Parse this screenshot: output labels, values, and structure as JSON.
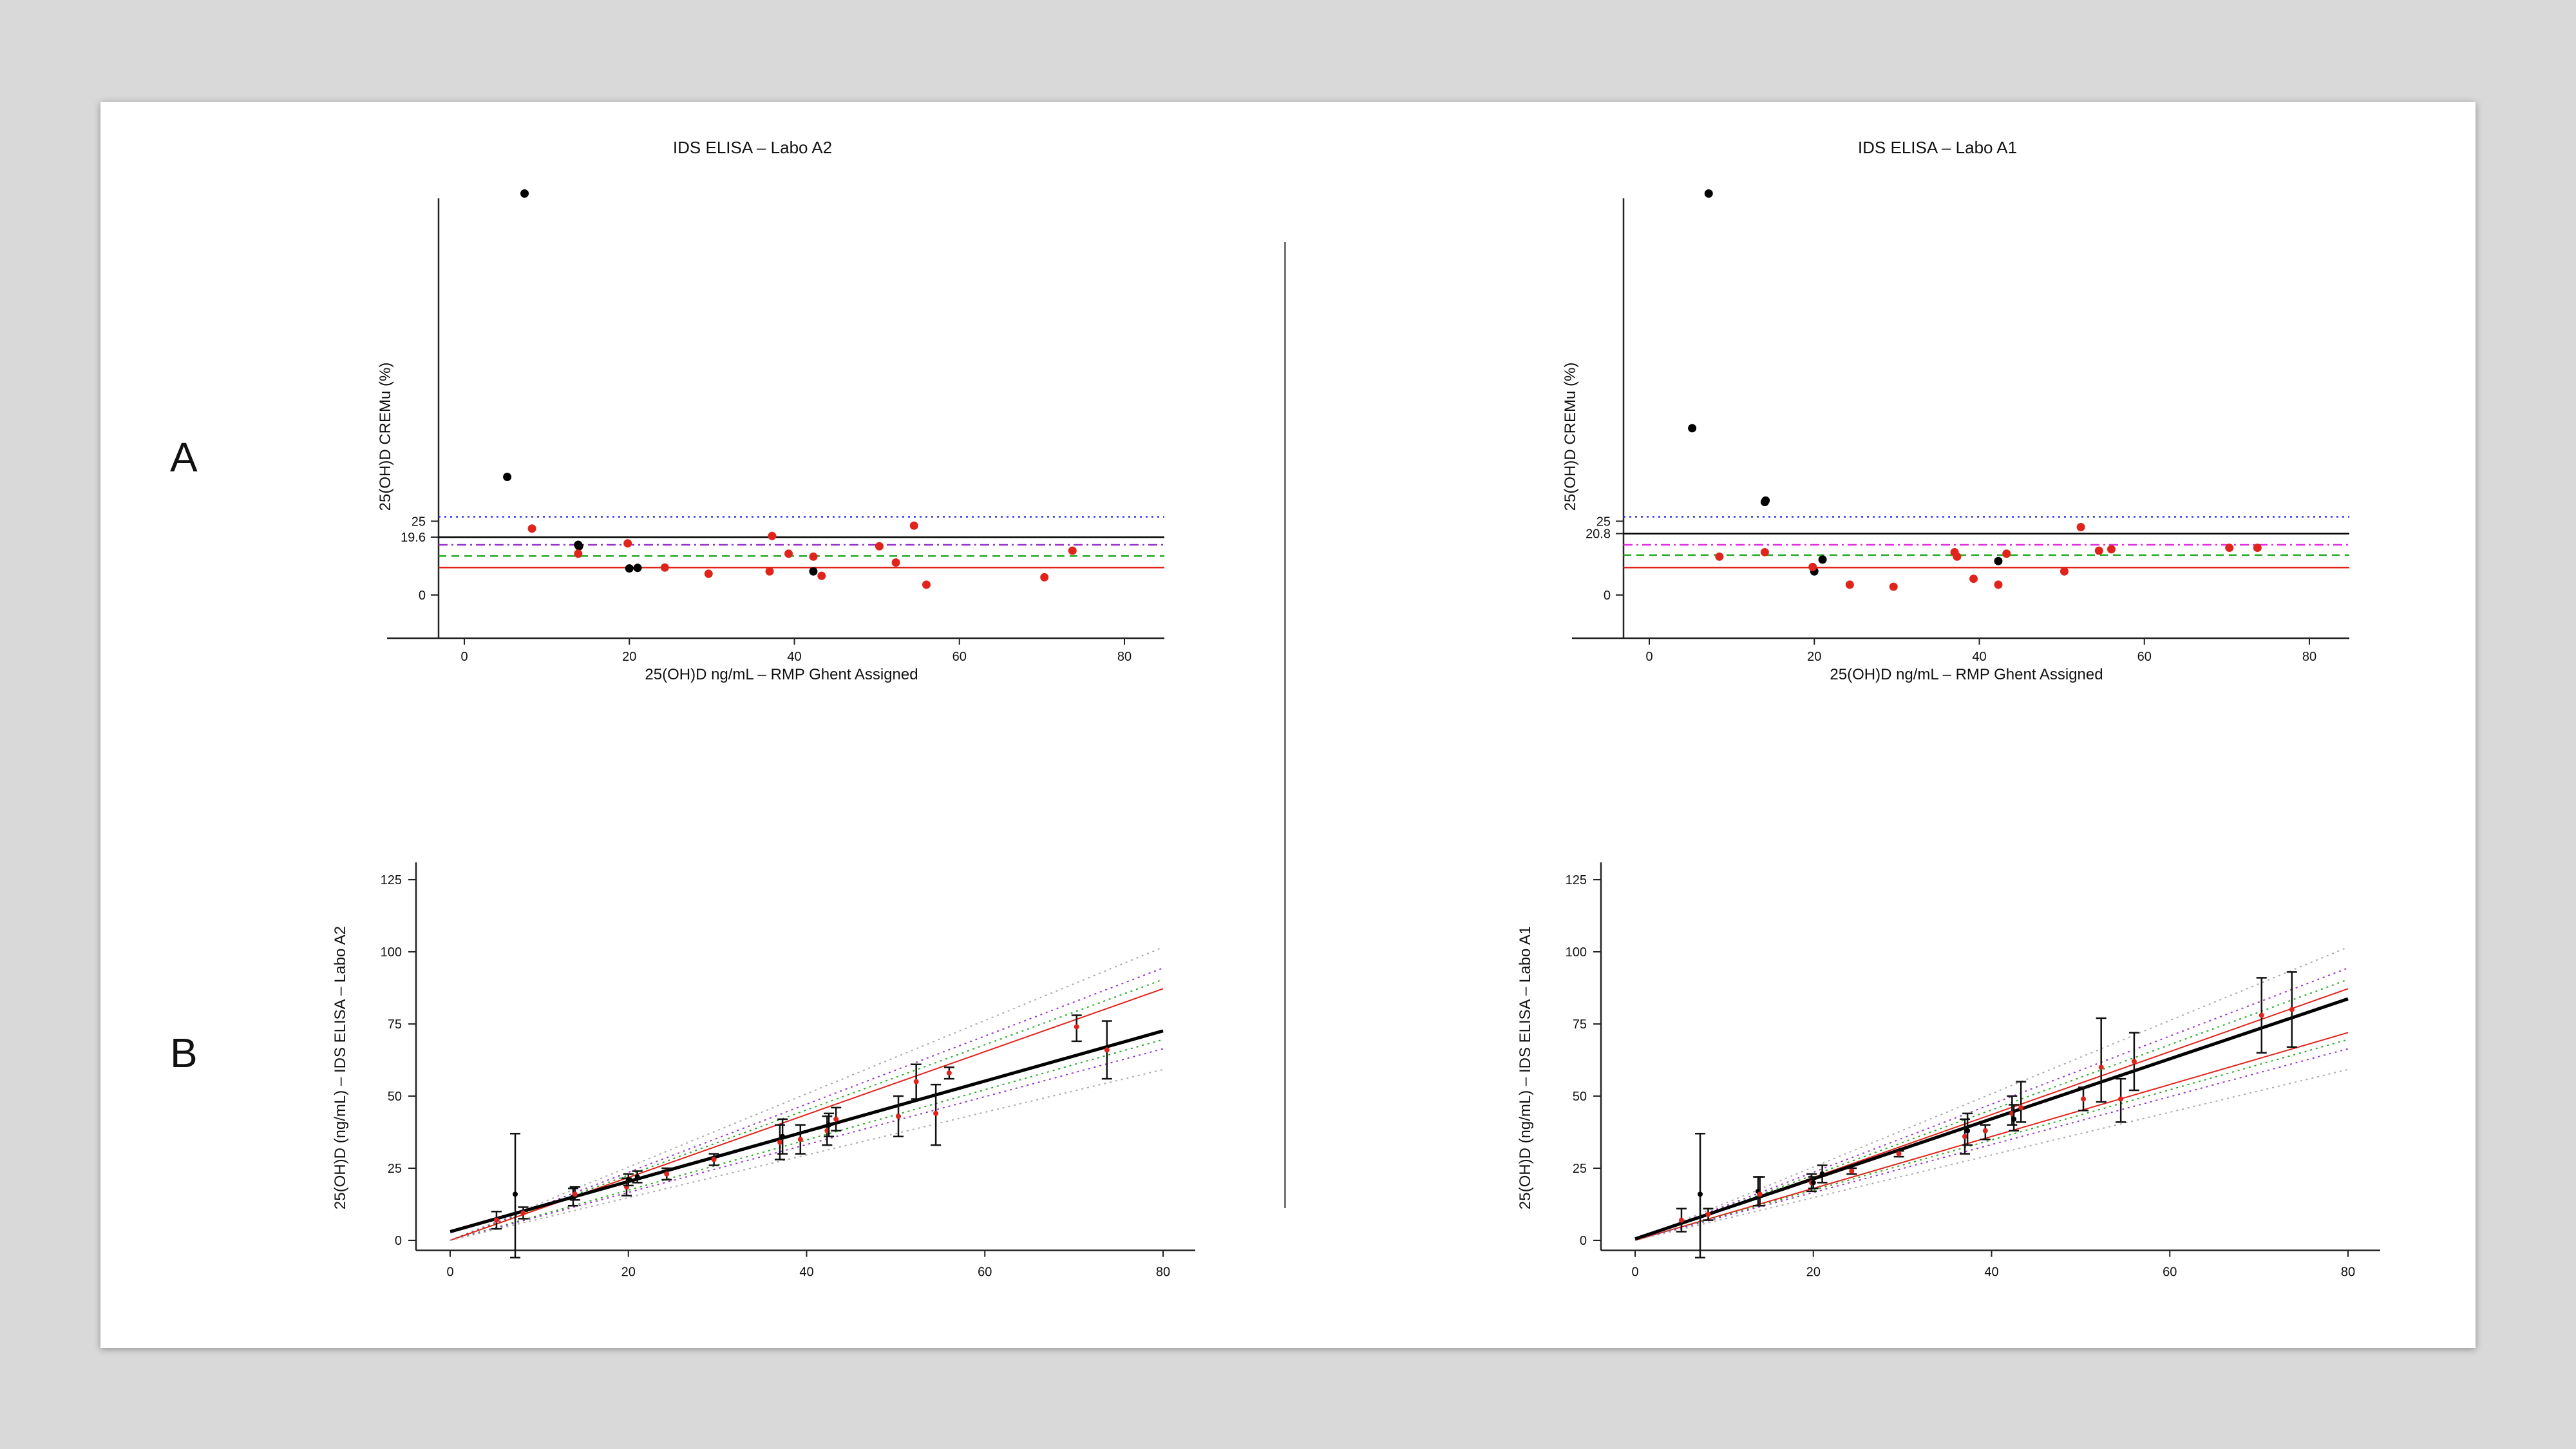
{
  "rows": {
    "a_label": "A",
    "b_label": "B"
  },
  "colors": {
    "black": "#000000",
    "red": "#e0241b",
    "blue": "#3333ff",
    "purple": "#9933cc",
    "green": "#22aa22",
    "grey": "#999999"
  },
  "chart_data": [
    {
      "id": "A-left",
      "type": "scatter",
      "title": "IDS ELISA – Labo A2",
      "xlabel": "25(OH)D  ng/mL – RMP Ghent Assigned",
      "ylabel": "25(OH)D  CREMu (%)",
      "xlim": [
        0,
        80
      ],
      "ylim": [
        -7,
        142
      ],
      "xticks": [
        0,
        20,
        40,
        60,
        80
      ],
      "yticks": [
        {
          "value": 0,
          "label": "0"
        },
        {
          "value": 19.6,
          "label": "19.6"
        },
        {
          "value": 25,
          "label": "25"
        }
      ],
      "hlines": [
        {
          "y": 26.5,
          "color": "#3333ff",
          "style": "dotted"
        },
        {
          "y": 19.6,
          "color": "#000000",
          "style": "solid"
        },
        {
          "y": 17.0,
          "color": "#9933cc",
          "style": "dashdot"
        },
        {
          "y": 13.2,
          "color": "#22aa22",
          "style": "dashed"
        },
        {
          "y": 9.3,
          "color": "#e0241b",
          "style": "solid"
        }
      ],
      "series": [
        {
          "color": "#000000",
          "points": [
            [
              7.3,
              136
            ],
            [
              5.2,
              40
            ],
            [
              13.8,
              17
            ],
            [
              13.9,
              16.5
            ],
            [
              20.0,
              9
            ],
            [
              21.0,
              9.2
            ],
            [
              42.3,
              8
            ]
          ]
        },
        {
          "color": "#e0241b",
          "points": [
            [
              8.2,
              22.5
            ],
            [
              13.8,
              14
            ],
            [
              19.8,
              17.5
            ],
            [
              24.3,
              9.3
            ],
            [
              29.6,
              7.2
            ],
            [
              37.0,
              8
            ],
            [
              37.3,
              20
            ],
            [
              39.3,
              14
            ],
            [
              42.3,
              13
            ],
            [
              43.3,
              6.5
            ],
            [
              50.3,
              16.5
            ],
            [
              52.3,
              11
            ],
            [
              54.5,
              23.5
            ],
            [
              56.0,
              3.5
            ],
            [
              70.3,
              6
            ],
            [
              73.7,
              15
            ]
          ]
        }
      ]
    },
    {
      "id": "A-right",
      "type": "scatter",
      "title": "IDS ELISA – Labo A1",
      "xlabel": "25(OH)D  ng/mL – RMP Ghent Assigned",
      "ylabel": "25(OH)D  CREMu (%)",
      "xlim": [
        0,
        80
      ],
      "ylim": [
        -7,
        142
      ],
      "xticks": [
        0,
        20,
        40,
        60,
        80
      ],
      "yticks": [
        {
          "value": 0,
          "label": "0"
        },
        {
          "value": 20.8,
          "label": "20.8"
        },
        {
          "value": 25,
          "label": "25"
        }
      ],
      "hlines": [
        {
          "y": 26.5,
          "color": "#3333ff",
          "style": "dotted"
        },
        {
          "y": 20.8,
          "color": "#000000",
          "style": "solid"
        },
        {
          "y": 17.0,
          "color": "#e030e0",
          "style": "dashdot"
        },
        {
          "y": 13.5,
          "color": "#22aa22",
          "style": "dashed"
        },
        {
          "y": 9.3,
          "color": "#e0241b",
          "style": "solid"
        }
      ],
      "series": [
        {
          "color": "#000000",
          "points": [
            [
              7.2,
              136
            ],
            [
              5.2,
              56.5
            ],
            [
              14.0,
              31.5
            ],
            [
              14.1,
              32
            ],
            [
              20.0,
              8
            ],
            [
              21.0,
              12
            ],
            [
              42.3,
              11.5
            ]
          ]
        },
        {
          "color": "#e0241b",
          "points": [
            [
              8.5,
              13
            ],
            [
              14.0,
              14.5
            ],
            [
              19.8,
              9.5
            ],
            [
              24.3,
              3.5
            ],
            [
              29.6,
              2.8
            ],
            [
              37.0,
              14.5
            ],
            [
              37.3,
              13
            ],
            [
              39.3,
              5.5
            ],
            [
              42.3,
              3.5
            ],
            [
              43.3,
              14
            ],
            [
              50.3,
              8
            ],
            [
              52.3,
              23
            ],
            [
              54.5,
              15
            ],
            [
              56.0,
              15.5
            ],
            [
              70.3,
              16
            ],
            [
              73.7,
              16
            ]
          ]
        }
      ]
    },
    {
      "id": "B-left",
      "type": "scatter",
      "title": "",
      "xlabel": "",
      "ylabel": "25(OH)D (ng/mL) – IDS ELISA – Labo A2",
      "xlim": [
        -2,
        80
      ],
      "ylim": [
        -6,
        131
      ],
      "xticks": [
        0,
        20,
        40,
        60,
        80
      ],
      "yticks": [
        {
          "value": 0,
          "label": "0"
        },
        {
          "value": 25,
          "label": "25"
        },
        {
          "value": 50,
          "label": "50"
        },
        {
          "value": 75,
          "label": "75"
        },
        {
          "value": 100,
          "label": "100"
        },
        {
          "value": 125,
          "label": "125"
        }
      ],
      "lines": [
        {
          "slope": 1.27,
          "intercept": 0,
          "color": "#aaaaaa",
          "style": "dotted"
        },
        {
          "slope": 1.18,
          "intercept": 0,
          "color": "#9933cc",
          "style": "dotted"
        },
        {
          "slope": 1.13,
          "intercept": 0,
          "color": "#22aa22",
          "style": "dotted"
        },
        {
          "slope": 1.09,
          "intercept": 0,
          "color": "#e0241b",
          "style": "solid"
        },
        {
          "slope": 0.87,
          "intercept": 0,
          "color": "#22aa22",
          "style": "dotted"
        },
        {
          "slope": 0.83,
          "intercept": 0,
          "color": "#9933cc",
          "style": "dotted"
        },
        {
          "slope": 0.74,
          "intercept": 0,
          "color": "#aaaaaa",
          "style": "dotted"
        },
        {
          "slope": 0.87,
          "intercept": 3,
          "color": "#000000",
          "style": "solid"
        }
      ],
      "points": [
        {
          "x": 5.2,
          "y": 7,
          "lo": 4,
          "hi": 10,
          "c": "#e0241b"
        },
        {
          "x": 7.3,
          "y": 16,
          "lo": -6,
          "hi": 37,
          "c": "#000000"
        },
        {
          "x": 8.2,
          "y": 9.5,
          "lo": 7.5,
          "hi": 11.5,
          "c": "#e0241b"
        },
        {
          "x": 13.8,
          "y": 15,
          "lo": 12,
          "hi": 18,
          "c": "#000000"
        },
        {
          "x": 14.0,
          "y": 16,
          "lo": 14,
          "hi": 18.5,
          "c": "#e0241b"
        },
        {
          "x": 19.8,
          "y": 18.5,
          "lo": 15.5,
          "hi": 21.5,
          "c": "#e0241b"
        },
        {
          "x": 20.0,
          "y": 21,
          "lo": 19,
          "hi": 23,
          "c": "#000000"
        },
        {
          "x": 21.0,
          "y": 22,
          "lo": 20,
          "hi": 24,
          "c": "#000000"
        },
        {
          "x": 24.3,
          "y": 23,
          "lo": 21,
          "hi": 25,
          "c": "#e0241b"
        },
        {
          "x": 29.6,
          "y": 28,
          "lo": 26,
          "hi": 30,
          "c": "#e0241b"
        },
        {
          "x": 37.0,
          "y": 34,
          "lo": 28,
          "hi": 40,
          "c": "#e0241b"
        },
        {
          "x": 37.3,
          "y": 36,
          "lo": 30,
          "hi": 42,
          "c": "#000000"
        },
        {
          "x": 39.3,
          "y": 35,
          "lo": 30,
          "hi": 40,
          "c": "#e0241b"
        },
        {
          "x": 42.3,
          "y": 38,
          "lo": 33,
          "hi": 43,
          "c": "#e0241b"
        },
        {
          "x": 42.5,
          "y": 40,
          "lo": 36,
          "hi": 44,
          "c": "#000000"
        },
        {
          "x": 43.3,
          "y": 42,
          "lo": 38,
          "hi": 46,
          "c": "#e0241b"
        },
        {
          "x": 50.3,
          "y": 43,
          "lo": 36,
          "hi": 50,
          "c": "#e0241b"
        },
        {
          "x": 52.3,
          "y": 55,
          "lo": 49,
          "hi": 61,
          "c": "#e0241b"
        },
        {
          "x": 54.5,
          "y": 44,
          "lo": 33,
          "hi": 54,
          "c": "#e0241b"
        },
        {
          "x": 56.0,
          "y": 58,
          "lo": 56,
          "hi": 60,
          "c": "#e0241b"
        },
        {
          "x": 70.3,
          "y": 74,
          "lo": 69,
          "hi": 78,
          "c": "#e0241b"
        },
        {
          "x": 73.7,
          "y": 66,
          "lo": 56,
          "hi": 76,
          "c": "#e0241b"
        }
      ]
    },
    {
      "id": "B-right",
      "type": "scatter",
      "title": "",
      "xlabel": "",
      "ylabel": "25(OH)D (ng/mL) – IDS ELISA – Labo A1",
      "xlim": [
        -2,
        80
      ],
      "ylim": [
        -6,
        131
      ],
      "xticks": [
        0,
        20,
        40,
        60,
        80
      ],
      "yticks": [
        {
          "value": 0,
          "label": "0"
        },
        {
          "value": 25,
          "label": "25"
        },
        {
          "value": 50,
          "label": "50"
        },
        {
          "value": 75,
          "label": "75"
        },
        {
          "value": 100,
          "label": "100"
        },
        {
          "value": 125,
          "label": "125"
        }
      ],
      "lines": [
        {
          "slope": 1.27,
          "intercept": 0,
          "color": "#aaaaaa",
          "style": "dotted"
        },
        {
          "slope": 1.18,
          "intercept": 0,
          "color": "#9933cc",
          "style": "dotted"
        },
        {
          "slope": 1.13,
          "intercept": 0,
          "color": "#22aa22",
          "style": "dotted"
        },
        {
          "slope": 1.09,
          "intercept": 0,
          "color": "#e0241b",
          "style": "solid"
        },
        {
          "slope": 0.9,
          "intercept": 0,
          "color": "#e0241b",
          "style": "solid"
        },
        {
          "slope": 0.87,
          "intercept": 0,
          "color": "#22aa22",
          "style": "dotted"
        },
        {
          "slope": 0.83,
          "intercept": 0,
          "color": "#9933cc",
          "style": "dotted"
        },
        {
          "slope": 0.74,
          "intercept": 0,
          "color": "#aaaaaa",
          "style": "dotted"
        },
        {
          "slope": 1.04,
          "intercept": 0.5,
          "color": "#000000",
          "style": "solid"
        }
      ],
      "points": [
        {
          "x": 5.2,
          "y": 7,
          "lo": 3,
          "hi": 11,
          "c": "#e0241b"
        },
        {
          "x": 7.3,
          "y": 16,
          "lo": -6,
          "hi": 37,
          "c": "#000000"
        },
        {
          "x": 8.2,
          "y": 9,
          "lo": 7,
          "hi": 11,
          "c": "#e0241b"
        },
        {
          "x": 13.8,
          "y": 17,
          "lo": 12,
          "hi": 22,
          "c": "#000000"
        },
        {
          "x": 14.0,
          "y": 16,
          "lo": 12,
          "hi": 22,
          "c": "#e0241b"
        },
        {
          "x": 19.8,
          "y": 20,
          "lo": 17,
          "hi": 23,
          "c": "#e0241b"
        },
        {
          "x": 20.0,
          "y": 20,
          "lo": 18,
          "hi": 22,
          "c": "#000000"
        },
        {
          "x": 21.0,
          "y": 23,
          "lo": 20,
          "hi": 26,
          "c": "#000000"
        },
        {
          "x": 24.3,
          "y": 24,
          "lo": 23,
          "hi": 25,
          "c": "#e0241b"
        },
        {
          "x": 29.6,
          "y": 30,
          "lo": 29,
          "hi": 31,
          "c": "#e0241b"
        },
        {
          "x": 37.0,
          "y": 36,
          "lo": 30,
          "hi": 42,
          "c": "#e0241b"
        },
        {
          "x": 37.3,
          "y": 38,
          "lo": 33,
          "hi": 44,
          "c": "#000000"
        },
        {
          "x": 39.3,
          "y": 38,
          "lo": 35,
          "hi": 40,
          "c": "#e0241b"
        },
        {
          "x": 42.3,
          "y": 44,
          "lo": 40,
          "hi": 50,
          "c": "#e0241b"
        },
        {
          "x": 42.5,
          "y": 42,
          "lo": 38,
          "hi": 47,
          "c": "#000000"
        },
        {
          "x": 43.3,
          "y": 46,
          "lo": 41,
          "hi": 55,
          "c": "#e0241b"
        },
        {
          "x": 50.3,
          "y": 49,
          "lo": 45,
          "hi": 53,
          "c": "#e0241b"
        },
        {
          "x": 52.3,
          "y": 60,
          "lo": 48,
          "hi": 77,
          "c": "#e0241b"
        },
        {
          "x": 54.5,
          "y": 49,
          "lo": 41,
          "hi": 56,
          "c": "#e0241b"
        },
        {
          "x": 56.0,
          "y": 62,
          "lo": 52,
          "hi": 72,
          "c": "#e0241b"
        },
        {
          "x": 70.3,
          "y": 78,
          "lo": 65,
          "hi": 91,
          "c": "#e0241b"
        },
        {
          "x": 73.7,
          "y": 80,
          "lo": 67,
          "hi": 93,
          "c": "#e0241b"
        }
      ]
    }
  ]
}
